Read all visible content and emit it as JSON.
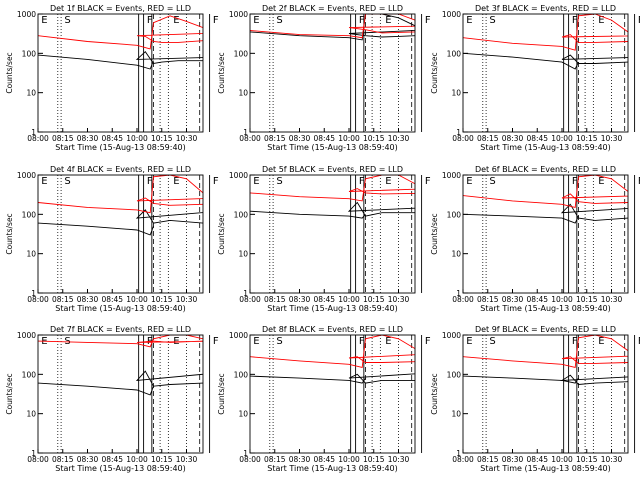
{
  "figure": {
    "xlabel": "Start Time (15-Aug-13 08:59:40)",
    "ylabel": "Counts/sec"
  },
  "axes": {
    "x_range": [
      "08:00",
      "10:40"
    ],
    "x_ticks": [
      "08:00",
      "08:15",
      "08:30",
      "08:45",
      "10:00",
      "10:15",
      "10:30"
    ],
    "y_range": [
      1,
      1000
    ],
    "y_scale": "log",
    "y_ticks": [
      "1",
      "10",
      "100",
      "1000"
    ]
  },
  "colors": {
    "events": "#000000",
    "lld": "#ff0000",
    "frame": "#000000"
  },
  "marker_lines": {
    "dashed": [
      "09:10",
      "09:38"
    ],
    "solid": [
      "09:44",
      "10:01",
      "10:04",
      "10:09"
    ],
    "dotted": [
      "08:12",
      "08:14",
      "09:14",
      "10:19",
      "10:30"
    ]
  },
  "marker_letters": [
    {
      "text": "E",
      "at": "08:02"
    },
    {
      "text": "S",
      "at": "08:16"
    },
    {
      "text": "F",
      "at": "09:46"
    },
    {
      "text": "F",
      "at": "10:06"
    },
    {
      "text": "E",
      "at": "10:22"
    }
  ],
  "chart_data": [
    {
      "type": "line",
      "title": "Det 1f BLACK = Events, RED = LLD",
      "series": [
        {
          "name": "Events",
          "color": "#000000",
          "x": [
            "08:00",
            "08:30",
            "09:00",
            "09:08",
            "09:10",
            "09:30",
            "09:44",
            "09:50",
            "10:00",
            "10:05",
            "10:10",
            "10:15",
            "10:25",
            "10:40"
          ],
          "values": [
            90,
            70,
            50,
            40,
            65,
            null,
            30,
            80,
            70,
            110,
            55,
            60,
            65,
            65
          ]
        },
        {
          "name": "LLD",
          "color": "#ff0000",
          "x": [
            "08:00",
            "08:30",
            "09:00",
            "09:08",
            "09:10",
            "09:20",
            "09:30",
            "09:40",
            "09:50",
            "10:00",
            "10:05",
            "10:10",
            "10:15",
            "10:25",
            "10:40"
          ],
          "values": [
            280,
            200,
            160,
            130,
            600,
            900,
            650,
            450,
            330,
            280,
            270,
            200,
            190,
            190,
            210
          ]
        }
      ]
    },
    {
      "type": "line",
      "title": "Det 2f BLACK = Events, RED = LLD",
      "series": [
        {
          "name": "Events",
          "color": "#000000",
          "x": [
            "08:00",
            "08:30",
            "09:00",
            "09:08",
            "09:10",
            "09:20",
            "09:30",
            "09:40",
            "09:50",
            "10:00",
            "10:10",
            "10:20",
            "10:30",
            "10:40"
          ],
          "values": [
            350,
            280,
            250,
            220,
            1000,
            1000,
            800,
            500,
            400,
            320,
            280,
            260,
            270,
            280
          ]
        },
        {
          "name": "LLD",
          "color": "#ff0000",
          "x": [
            "08:00",
            "08:30",
            "09:00",
            "09:08",
            "09:10",
            "09:20",
            "09:30",
            "09:40",
            "09:50",
            "10:00",
            "10:10",
            "10:20",
            "10:30",
            "10:40"
          ],
          "values": [
            380,
            300,
            280,
            250,
            1000,
            1000,
            1000,
            700,
            500,
            450,
            400,
            330,
            340,
            350
          ]
        }
      ]
    },
    {
      "type": "line",
      "title": "Det 3f BLACK = Events, RED = LLD",
      "series": [
        {
          "name": "Events",
          "color": "#000000",
          "x": [
            "08:00",
            "08:30",
            "09:00",
            "09:08",
            "09:10",
            "09:30",
            "09:44",
            "09:50",
            "10:00",
            "10:05",
            "10:10",
            "10:20",
            "10:40"
          ],
          "values": [
            100,
            80,
            60,
            40,
            60,
            null,
            40,
            80,
            70,
            90,
            55,
            55,
            60
          ]
        },
        {
          "name": "LLD",
          "color": "#ff0000",
          "x": [
            "08:00",
            "08:30",
            "09:00",
            "09:08",
            "09:10",
            "09:20",
            "09:30",
            "09:40",
            "09:50",
            "10:00",
            "10:05",
            "10:10",
            "10:20",
            "10:40"
          ],
          "values": [
            250,
            180,
            150,
            120,
            900,
            1000,
            700,
            350,
            280,
            260,
            300,
            190,
            190,
            200
          ]
        }
      ]
    },
    {
      "type": "line",
      "title": "Det 4f BLACK = Events, RED = LLD",
      "series": [
        {
          "name": "Events",
          "color": "#000000",
          "x": [
            "08:00",
            "08:30",
            "09:00",
            "09:08",
            "09:10",
            "09:30",
            "09:44",
            "09:50",
            "10:00",
            "10:05",
            "10:10",
            "10:20",
            "10:40"
          ],
          "values": [
            60,
            50,
            40,
            30,
            50,
            null,
            100,
            120,
            80,
            130,
            60,
            70,
            60
          ]
        },
        {
          "name": "LLD",
          "color": "#ff0000",
          "x": [
            "08:00",
            "08:30",
            "09:00",
            "09:08",
            "09:10",
            "09:20",
            "09:30",
            "09:40",
            "09:50",
            "10:00",
            "10:05",
            "10:10",
            "10:20",
            "10:40"
          ],
          "values": [
            200,
            150,
            130,
            110,
            900,
            1000,
            800,
            350,
            260,
            220,
            260,
            190,
            170,
            180
          ]
        }
      ]
    },
    {
      "type": "line",
      "title": "Det 5f BLACK = Events, RED = LLD",
      "series": [
        {
          "name": "Events",
          "color": "#000000",
          "x": [
            "08:00",
            "08:30",
            "09:00",
            "09:08",
            "09:10",
            "09:30",
            "09:40",
            "09:45",
            "09:50",
            "10:00",
            "10:05",
            "10:10",
            "10:20",
            "10:40"
          ],
          "values": [
            120,
            100,
            90,
            80,
            100,
            null,
            null,
            180,
            150,
            120,
            200,
            90,
            110,
            110
          ]
        },
        {
          "name": "LLD",
          "color": "#ff0000",
          "x": [
            "08:00",
            "08:30",
            "09:00",
            "09:08",
            "09:10",
            "09:20",
            "09:30",
            "09:40",
            "09:50",
            "10:00",
            "10:05",
            "10:10",
            "10:20",
            "10:40"
          ],
          "values": [
            350,
            280,
            250,
            220,
            800,
            1000,
            1000,
            600,
            450,
            380,
            450,
            350,
            330,
            340
          ]
        }
      ]
    },
    {
      "type": "line",
      "title": "Det 6f BLACK = Events, RED = LLD",
      "series": [
        {
          "name": "Events",
          "color": "#000000",
          "x": [
            "08:00",
            "08:30",
            "09:00",
            "09:08",
            "09:10",
            "09:30",
            "09:44",
            "09:50",
            "10:00",
            "10:05",
            "10:10",
            "10:20",
            "10:40"
          ],
          "values": [
            100,
            90,
            80,
            60,
            90,
            null,
            100,
            150,
            110,
            180,
            80,
            70,
            80
          ]
        },
        {
          "name": "LLD",
          "color": "#ff0000",
          "x": [
            "08:00",
            "08:30",
            "09:00",
            "09:08",
            "09:10",
            "09:20",
            "09:30",
            "09:40",
            "09:50",
            "10:00",
            "10:05",
            "10:10",
            "10:20",
            "10:40"
          ],
          "values": [
            300,
            220,
            180,
            150,
            900,
            1000,
            800,
            380,
            300,
            260,
            330,
            210,
            190,
            200
          ]
        }
      ]
    },
    {
      "type": "line",
      "title": "Det 7f BLACK = Events, RED = LLD",
      "series": [
        {
          "name": "Events",
          "color": "#000000",
          "x": [
            "08:00",
            "08:30",
            "09:00",
            "09:08",
            "09:10",
            "09:30",
            "09:44",
            "09:50",
            "10:00",
            "10:05",
            "10:10",
            "10:20",
            "10:40"
          ],
          "values": [
            60,
            50,
            40,
            30,
            50,
            null,
            100,
            110,
            70,
            120,
            50,
            55,
            60
          ]
        },
        {
          "name": "LLD",
          "color": "#ff0000",
          "x": [
            "08:00",
            "08:30",
            "09:00",
            "09:08",
            "09:10",
            "09:20",
            "09:30",
            "09:40",
            "09:50",
            "10:00",
            "10:10",
            "10:20",
            "10:40"
          ],
          "values": [
            700,
            650,
            600,
            500,
            800,
            1000,
            1000,
            800,
            700,
            650,
            700,
            650,
            700
          ]
        }
      ]
    },
    {
      "type": "line",
      "title": "Det 8f BLACK = Events, RED = LLD",
      "series": [
        {
          "name": "Events",
          "color": "#000000",
          "x": [
            "08:00",
            "08:30",
            "09:00",
            "09:08",
            "09:10",
            "09:30",
            "09:40",
            "09:45",
            "09:50",
            "10:00",
            "10:05",
            "10:10",
            "10:20",
            "10:40"
          ],
          "values": [
            90,
            80,
            70,
            60,
            80,
            null,
            null,
            120,
            110,
            80,
            100,
            60,
            70,
            70
          ]
        },
        {
          "name": "LLD",
          "color": "#ff0000",
          "x": [
            "08:00",
            "08:30",
            "09:00",
            "09:08",
            "09:10",
            "09:20",
            "09:30",
            "09:40",
            "09:50",
            "10:00",
            "10:05",
            "10:10",
            "10:20",
            "10:40"
          ],
          "values": [
            280,
            220,
            180,
            150,
            800,
            1000,
            800,
            450,
            330,
            260,
            280,
            200,
            200,
            210
          ]
        }
      ]
    },
    {
      "type": "line",
      "title": "Det 9f BLACK = Events, RED = LLD",
      "series": [
        {
          "name": "Events",
          "color": "#000000",
          "x": [
            "08:00",
            "08:30",
            "09:00",
            "09:08",
            "09:10",
            "09:30",
            "09:44",
            "09:50",
            "10:00",
            "10:05",
            "10:10",
            "10:20",
            "10:40"
          ],
          "values": [
            90,
            80,
            70,
            60,
            80,
            null,
            60,
            90,
            70,
            95,
            55,
            60,
            65
          ]
        },
        {
          "name": "LLD",
          "color": "#ff0000",
          "x": [
            "08:00",
            "08:30",
            "09:00",
            "09:08",
            "09:10",
            "09:20",
            "09:30",
            "09:40",
            "09:50",
            "10:00",
            "10:05",
            "10:10",
            "10:20",
            "10:40"
          ],
          "values": [
            280,
            220,
            180,
            150,
            850,
            1000,
            800,
            400,
            300,
            250,
            280,
            190,
            190,
            200
          ]
        }
      ]
    }
  ]
}
